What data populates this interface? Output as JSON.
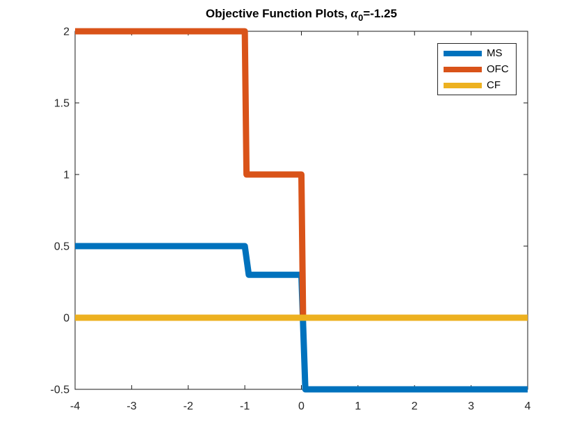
{
  "title": {
    "prefix": "Objective Function Plots, ",
    "alpha": "α",
    "subscript": "0",
    "suffix": "=-1.25"
  },
  "chart_data": {
    "type": "line",
    "step": true,
    "title": "Objective Function Plots, α_0 = -1.25",
    "xlabel": "",
    "ylabel": "",
    "xlim": [
      -4,
      4
    ],
    "ylim": [
      -0.5,
      2
    ],
    "x_ticks": [
      -4,
      -3,
      -2,
      -1,
      0,
      1,
      2,
      3,
      4
    ],
    "y_ticks": [
      -0.5,
      0,
      0.5,
      1,
      1.5,
      2
    ],
    "grid": false,
    "box": true,
    "legend_position": "northeast",
    "axis_color": "#1a1a1a",
    "tick_label_color": "#262626",
    "series": [
      {
        "name": "MS",
        "color": "#0072BD",
        "line_width": 9,
        "points": [
          [
            -4,
            0.5
          ],
          [
            -1,
            0.5
          ],
          [
            -0.93,
            0.3
          ],
          [
            0,
            0.3
          ],
          [
            0.07,
            -0.5
          ],
          [
            4,
            -0.5
          ]
        ]
      },
      {
        "name": "OFC",
        "color": "#D95319",
        "line_width": 9,
        "points": [
          [
            -4,
            2
          ],
          [
            -1,
            2
          ],
          [
            -0.97,
            1
          ],
          [
            0,
            1
          ],
          [
            0.03,
            0
          ]
        ]
      },
      {
        "name": "CF",
        "color": "#EDB120",
        "line_width": 9,
        "points": [
          [
            -4,
            0
          ],
          [
            4,
            0
          ]
        ]
      }
    ]
  },
  "legend": {
    "items": [
      "MS",
      "OFC",
      "CF"
    ]
  }
}
